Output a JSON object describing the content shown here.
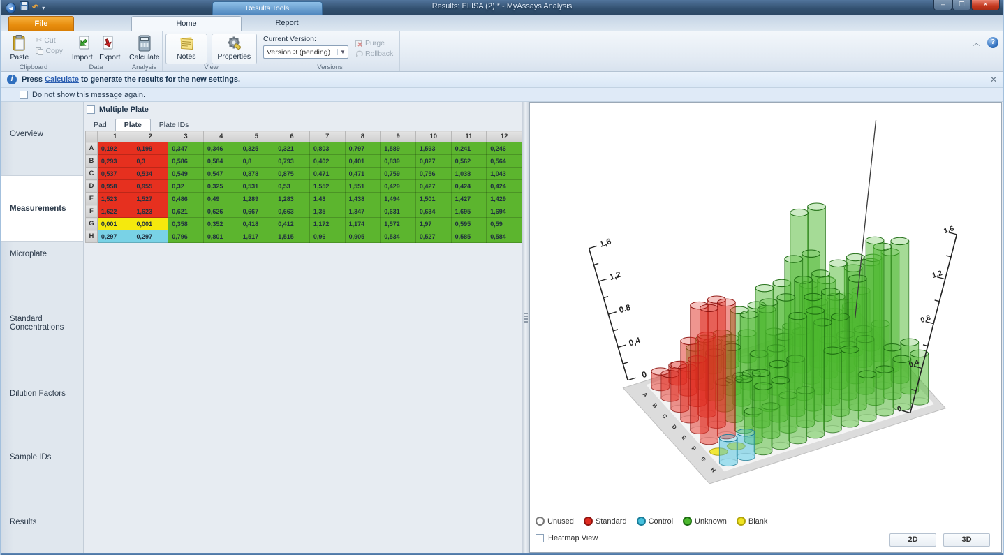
{
  "window": {
    "title": "Results: ELISA (2) * - MyAssays Analysis",
    "contextual_tab": "Results Tools",
    "minimize": "–",
    "maximize": "❐",
    "close": "✕"
  },
  "tabs": {
    "file": "File",
    "home": "Home",
    "report": "Report"
  },
  "ribbon": {
    "paste": "Paste",
    "cut": "Cut",
    "copy": "Copy",
    "import": "Import",
    "export": "Export",
    "calculate": "Calculate",
    "notes": "Notes",
    "properties": "Properties",
    "current_version_label": "Current Version:",
    "version_value": "Version 3 (pending)",
    "purge": "Purge",
    "rollback": "Rollback",
    "group_labels": {
      "clipboard": "Clipboard",
      "data": "Data",
      "analysis": "Analysis",
      "view": "View",
      "versions": "Versions"
    }
  },
  "message_bar": {
    "prefix": "Press ",
    "link": "Calculate",
    "suffix": " to generate the results for the new settings.",
    "close": "✕",
    "dismiss": "Do not show this message again."
  },
  "sidebar": {
    "items": [
      {
        "label": "Overview"
      },
      {
        "label": "Measurements",
        "selected": true
      },
      {
        "label": "Microplate"
      },
      {
        "label": "Standard Concentrations"
      },
      {
        "label": "Dilution Factors"
      },
      {
        "label": "Sample IDs"
      },
      {
        "label": "Results"
      }
    ]
  },
  "plate_panel": {
    "multiple_plate": "Multiple Plate",
    "tabs": [
      "Pad",
      "Plate",
      "Plate IDs"
    ],
    "active_tab": "Plate"
  },
  "chart_data": {
    "type": "bar",
    "title": "96-well microplate measurements, 3D cylinder view",
    "rows": [
      "A",
      "B",
      "C",
      "D",
      "E",
      "F",
      "G",
      "H"
    ],
    "columns": [
      "1",
      "2",
      "3",
      "4",
      "5",
      "6",
      "7",
      "8",
      "9",
      "10",
      "11",
      "12"
    ],
    "values": [
      [
        "0,192",
        "0,199",
        "0,347",
        "0,346",
        "0,325",
        "0,321",
        "0,803",
        "0,797",
        "1,589",
        "1,593",
        "0,241",
        "0,246"
      ],
      [
        "0,293",
        "0,3",
        "0,586",
        "0,584",
        "0,8",
        "0,793",
        "0,402",
        "0,401",
        "0,839",
        "0,827",
        "0,562",
        "0,564"
      ],
      [
        "0,537",
        "0,534",
        "0,549",
        "0,547",
        "0,878",
        "0,875",
        "0,471",
        "0,471",
        "0,759",
        "0,756",
        "1,038",
        "1,043"
      ],
      [
        "0,958",
        "0,955",
        "0,32",
        "0,325",
        "0,531",
        "0,53",
        "1,552",
        "1,551",
        "0,429",
        "0,427",
        "0,424",
        "0,424"
      ],
      [
        "1,523",
        "1,527",
        "0,486",
        "0,49",
        "1,289",
        "1,283",
        "1,43",
        "1,438",
        "1,494",
        "1,501",
        "1,427",
        "1,429"
      ],
      [
        "1,622",
        "1,623",
        "0,621",
        "0,626",
        "0,667",
        "0,663",
        "1,35",
        "1,347",
        "0,631",
        "0,634",
        "1,695",
        "1,694"
      ],
      [
        "0,001",
        "0,001",
        "0,358",
        "0,352",
        "0,418",
        "0,412",
        "1,172",
        "1,174",
        "1,572",
        "1,97",
        "0,595",
        "0,59"
      ],
      [
        "0,297",
        "0,297",
        "0,796",
        "0,801",
        "1,517",
        "1,515",
        "0,96",
        "0,905",
        "0,534",
        "0,527",
        "0,585",
        "0,584"
      ]
    ],
    "well_types": [
      "SSUUUUUUUUUU",
      "SSUUUUUUUUUU",
      "SSUUUUUUUUUU",
      "SSUUUUUUUUUU",
      "SSUUUUUUUUUU",
      "SSUUUUUUUUUU",
      "BBUUUUUUUUUU",
      "CCUUUUUUUUUU"
    ],
    "zlim": [
      0,
      1.6
    ],
    "z_ticks": [
      "0",
      "0,4",
      "0,8",
      "1,2",
      "1,6"
    ],
    "legend": [
      {
        "label": "Unused",
        "color": "#ffffff",
        "stroke": "#777777"
      },
      {
        "label": "Standard",
        "color": "#e02b20",
        "stroke": "#8f1410"
      },
      {
        "label": "Control",
        "color": "#45c0dd",
        "stroke": "#1a7d99"
      },
      {
        "label": "Unknown",
        "color": "#4cb82e",
        "stroke": "#1e6c12"
      },
      {
        "label": "Blank",
        "color": "#f0e422",
        "stroke": "#b1a40a"
      }
    ],
    "type_colors": {
      "S": {
        "fill": "#e02b20",
        "stroke": "#8f1410"
      },
      "U": {
        "fill": "#4cb82e",
        "stroke": "#1e6c12"
      },
      "C": {
        "fill": "#45c0dd",
        "stroke": "#1a7d99"
      },
      "B": {
        "fill": "#f0e422",
        "stroke": "#b1a40a"
      }
    },
    "table_colors": {
      "S": "#e6301f",
      "U": "#5cb52e",
      "C": "#79d2e6",
      "B": "#f5e90d"
    }
  },
  "chart_panel": {
    "heatmap_view": "Heatmap View",
    "btn_2d": "2D",
    "btn_3d": "3D"
  }
}
